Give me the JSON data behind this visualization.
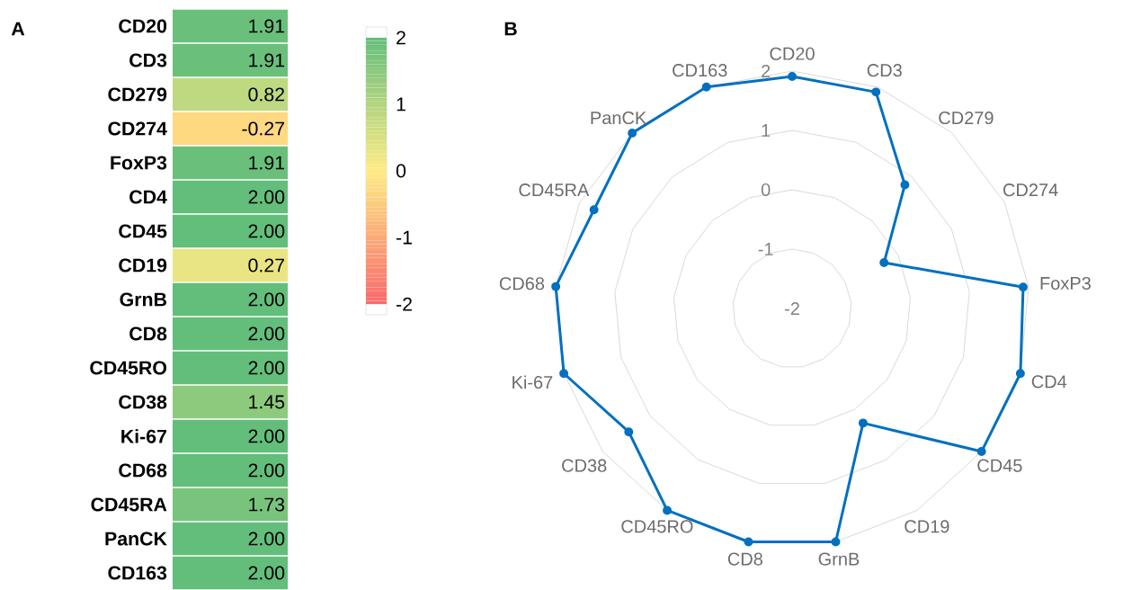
{
  "chart_data": [
    {
      "type": "heatmap",
      "title": "A",
      "categories": [
        null
      ],
      "y_categories": [
        "CD20",
        "CD3",
        "CD279",
        "CD274",
        "FoxP3",
        "CD4",
        "CD45",
        "CD19",
        "GrnB",
        "CD8",
        "CD45RO",
        "CD38",
        "Ki-67",
        "CD68",
        "CD45RA",
        "PanCK",
        "CD163"
      ],
      "cells": [
        [
          1.91
        ],
        [
          1.91
        ],
        [
          0.82
        ],
        [
          -0.27
        ],
        [
          1.91
        ],
        [
          2.0
        ],
        [
          2.0
        ],
        [
          0.27
        ],
        [
          2.0
        ],
        [
          2.0
        ],
        [
          2.0
        ],
        [
          1.45
        ],
        [
          2.0
        ],
        [
          2.0
        ],
        [
          1.73
        ],
        [
          2.0
        ],
        [
          2.0
        ]
      ],
      "cell_labels": [
        [
          "1.91"
        ],
        [
          "1.91"
        ],
        [
          "0.82"
        ],
        [
          "-0.27"
        ],
        [
          "1.91"
        ],
        [
          "2.00"
        ],
        [
          "2.00"
        ],
        [
          "0.27"
        ],
        [
          "2.00"
        ],
        [
          "2.00"
        ],
        [
          "2.00"
        ],
        [
          "1.45"
        ],
        [
          "2.00"
        ],
        [
          "2.00"
        ],
        [
          "1.73"
        ],
        [
          "2.00"
        ],
        [
          "2.00"
        ]
      ],
      "clim": [
        -2,
        2
      ],
      "cticks": [
        -2,
        -1,
        0,
        1,
        2
      ]
    },
    {
      "type": "radar",
      "title": "B",
      "categories": [
        "CD20",
        "CD3",
        "CD279",
        "CD274",
        "FoxP3",
        "CD4",
        "CD45",
        "CD19",
        "GrnB",
        "CD8",
        "CD45RO",
        "CD38",
        "Ki-67",
        "CD68",
        "CD45RA",
        "PanCK",
        "CD163"
      ],
      "series": [
        {
          "color": "#0070c0",
          "values": [
            1.91,
            1.91,
            0.82,
            -0.27,
            1.91,
            2.0,
            2.0,
            0.27,
            2.0,
            2.0,
            2.0,
            1.45,
            2.0,
            2.0,
            1.73,
            2.0,
            2.0
          ]
        }
      ],
      "ylim": [
        -2,
        2
      ],
      "yticks": [
        -2,
        -1,
        0,
        1,
        2
      ],
      "grid": true,
      "marker": "circle"
    }
  ]
}
